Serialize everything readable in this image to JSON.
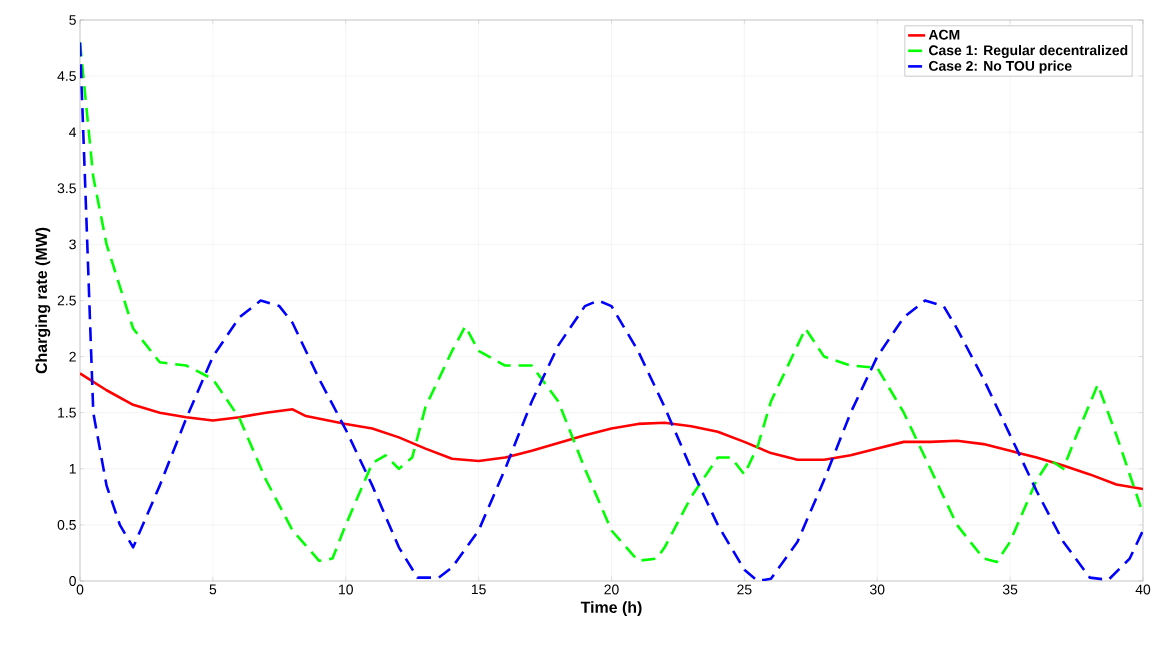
{
  "chart_data": {
    "type": "line",
    "xlabel": "Time (h)",
    "ylabel": "Charging rate (MW)",
    "xlim": [
      0,
      40
    ],
    "ylim": [
      0,
      5
    ],
    "xticks": [
      0,
      5,
      10,
      15,
      20,
      25,
      30,
      35,
      40
    ],
    "yticks": [
      0,
      0.5,
      1,
      1.5,
      2,
      2.5,
      3,
      3.5,
      4,
      4.5,
      5
    ],
    "grid": true,
    "legend": "top right",
    "series": [
      {
        "name": "ACM",
        "color": "#ff0000",
        "line_style": "solid",
        "x": [
          0,
          1,
          2,
          3,
          4,
          5,
          6,
          7,
          8,
          8.5,
          10,
          11,
          12,
          13,
          14,
          15,
          16,
          17,
          18,
          19,
          20,
          21,
          22,
          23,
          24,
          25,
          26,
          27,
          28,
          29,
          30,
          31,
          32,
          33,
          34,
          35,
          36,
          37,
          38,
          39,
          40
        ],
        "values": [
          1.85,
          1.7,
          1.57,
          1.5,
          1.46,
          1.43,
          1.46,
          1.5,
          1.53,
          1.47,
          1.4,
          1.36,
          1.28,
          1.18,
          1.09,
          1.07,
          1.1,
          1.16,
          1.23,
          1.3,
          1.36,
          1.4,
          1.41,
          1.38,
          1.33,
          1.24,
          1.14,
          1.08,
          1.08,
          1.12,
          1.18,
          1.24,
          1.24,
          1.25,
          1.22,
          1.16,
          1.1,
          1.03,
          0.95,
          0.86,
          0.82
        ]
      },
      {
        "name": "Case 1: Regular decentralized",
        "color": "#00ff00",
        "line_style": "dashed",
        "x": [
          0,
          0.5,
          1,
          2,
          3,
          4,
          5,
          6,
          7,
          8,
          9,
          9.5,
          10,
          11,
          11.5,
          12,
          12.5,
          13,
          14,
          14.5,
          15,
          16,
          17,
          18,
          19,
          20,
          21,
          21.7,
          22,
          23,
          24,
          24.5,
          25,
          25.5,
          26,
          27,
          27.3,
          28,
          29,
          30,
          31,
          32,
          33,
          34,
          34.5,
          35,
          36,
          36.5,
          37,
          37.5,
          38.3,
          39,
          40
        ],
        "values": [
          4.8,
          3.6,
          3.0,
          2.25,
          1.95,
          1.92,
          1.8,
          1.45,
          0.9,
          0.45,
          0.18,
          0.2,
          0.5,
          1.05,
          1.12,
          1.0,
          1.1,
          1.55,
          2.05,
          2.27,
          2.05,
          1.92,
          1.92,
          1.6,
          1.0,
          0.45,
          0.18,
          0.2,
          0.3,
          0.75,
          1.1,
          1.1,
          0.95,
          1.2,
          1.6,
          2.1,
          2.25,
          2.0,
          1.92,
          1.9,
          1.5,
          1.0,
          0.5,
          0.2,
          0.17,
          0.35,
          0.9,
          1.08,
          1.0,
          1.3,
          1.75,
          1.3,
          0.6
        ]
      },
      {
        "name": "Case 2: No TOU price",
        "color": "#0000ff",
        "line_style": "dashed",
        "x": [
          0,
          0.2,
          0.5,
          1,
          1.5,
          2,
          3,
          4,
          5,
          6,
          6.8,
          7.5,
          8,
          9,
          10,
          11,
          12,
          12.7,
          13.5,
          14,
          15,
          16,
          17,
          18,
          19,
          19.5,
          20,
          21,
          22,
          23,
          24,
          25,
          25.5,
          26,
          27,
          28,
          29,
          30,
          31,
          31.8,
          32.5,
          33,
          34,
          35,
          36,
          37,
          38,
          38.7,
          39.5,
          40
        ],
        "values": [
          4.8,
          3.5,
          1.5,
          0.85,
          0.5,
          0.3,
          0.85,
          1.45,
          2.0,
          2.35,
          2.5,
          2.45,
          2.3,
          1.8,
          1.35,
          0.85,
          0.3,
          0.03,
          0.03,
          0.12,
          0.45,
          1.0,
          1.6,
          2.1,
          2.45,
          2.5,
          2.45,
          2.05,
          1.55,
          1.0,
          0.5,
          0.1,
          0.0,
          0.02,
          0.35,
          0.9,
          1.5,
          2.0,
          2.35,
          2.5,
          2.45,
          2.25,
          1.8,
          1.3,
          0.8,
          0.35,
          0.03,
          0.01,
          0.2,
          0.45
        ]
      }
    ]
  }
}
